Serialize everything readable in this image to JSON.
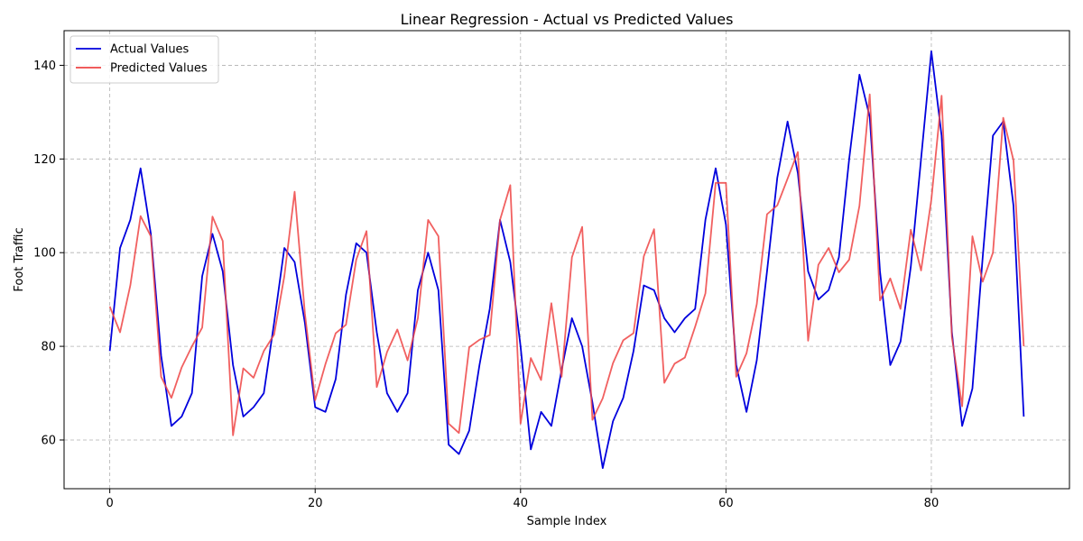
{
  "chart_data": {
    "type": "line",
    "title": "Linear Regression - Actual vs Predicted Values",
    "xlabel": "Sample Index",
    "ylabel": "Foot Traffic",
    "xlim": [
      -4.45,
      93.45
    ],
    "ylim": [
      49.6,
      147.4
    ],
    "xticks": [
      0,
      20,
      40,
      60,
      80
    ],
    "yticks": [
      60,
      80,
      100,
      120,
      140
    ],
    "grid": true,
    "legend_position": "upper-left",
    "series": [
      {
        "name": "Actual Values",
        "color": "#0000dd",
        "values": [
          79,
          101,
          107,
          118,
          104,
          78,
          63,
          65,
          70,
          95,
          104,
          96,
          76,
          65,
          67,
          70,
          85,
          101,
          98,
          85,
          67,
          66,
          73,
          91,
          102,
          100,
          83,
          70,
          66,
          70,
          92,
          100,
          92,
          59,
          57,
          62,
          76,
          88,
          107,
          98,
          80,
          58,
          66,
          63,
          75,
          86,
          80,
          68,
          54,
          64,
          69,
          79,
          93,
          92,
          86,
          83,
          86,
          88,
          107,
          118,
          106,
          76,
          66,
          77,
          96,
          116,
          128,
          117,
          96,
          90,
          92,
          99,
          120,
          138,
          129,
          96,
          76,
          81,
          97,
          120,
          143,
          125,
          83,
          63,
          71,
          99,
          125,
          128,
          110,
          65
        ]
      },
      {
        "name": "Predicted Values",
        "color": "#ee4444",
        "values": [
          88.5,
          83,
          93,
          107.8,
          103.5,
          73.5,
          69,
          75.5,
          80,
          84,
          107.7,
          102.5,
          61,
          75.3,
          73.3,
          79,
          82.5,
          95,
          113,
          87,
          68.5,
          76.2,
          82.8,
          84.6,
          98.5,
          104.6,
          71.3,
          78.8,
          83.6,
          77,
          86,
          107,
          103.5,
          63.5,
          61.5,
          79.8,
          81.4,
          82.4,
          107,
          114.4,
          63.5,
          77.5,
          72.8,
          89.2,
          73.5,
          99,
          105.5,
          64.3,
          68.9,
          76.4,
          81.3,
          82.8,
          99.2,
          105,
          72.2,
          76.3,
          77.6,
          84.2,
          91.3,
          114.9,
          114.9,
          73.5,
          78.5,
          89,
          108.2,
          110.1,
          115.8,
          121.5,
          81.2,
          97.4,
          101,
          95.8,
          98.5,
          110,
          133.8,
          89.8,
          94.5,
          88,
          104.9,
          96.2,
          111.3,
          133.5,
          82,
          67.2,
          103.5,
          93.8,
          100,
          128.8,
          119.7,
          80
        ]
      }
    ]
  }
}
